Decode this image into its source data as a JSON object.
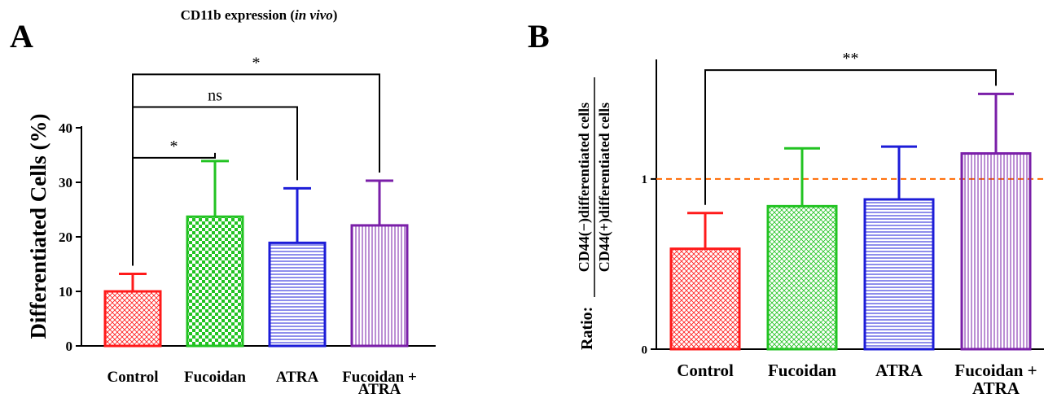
{
  "chart_data": [
    {
      "panel_label": "A",
      "type": "bar",
      "title": "CD11b expression (",
      "title_italic": "in vivo",
      "title_end": ")",
      "ylabel": "Differentiated Cells (%)",
      "xlabel": "",
      "ylim": [
        0,
        40
      ],
      "yticks": [
        0,
        10,
        20,
        30,
        40
      ],
      "categories": [
        {
          "line1": "Control",
          "line2": ""
        },
        {
          "line1": "Fucoidan",
          "line2": ""
        },
        {
          "line1": "ATRA",
          "line2": ""
        },
        {
          "line1": "Fucoidan +",
          "line2": "ATRA"
        }
      ],
      "values": [
        10.0,
        23.7,
        18.9,
        22.1
      ],
      "errors": [
        3.2,
        10.2,
        10.0,
        8.2
      ],
      "colors": [
        "#ff1a1a",
        "#22c322",
        "#1c1cd8",
        "#7a1fa8"
      ],
      "patterns": [
        "crosshatch",
        "checker",
        "horizontal",
        "vertical"
      ],
      "significance": [
        {
          "from": 0,
          "to": 1,
          "label": "*",
          "level": 34.5
        },
        {
          "from": 0,
          "to": 2,
          "label": "ns",
          "level": 43.8
        },
        {
          "from": 0,
          "to": 3,
          "label": "*",
          "level": 49.8
        }
      ]
    },
    {
      "panel_label": "B",
      "type": "bar",
      "ylabel_prefix": "Ratio:",
      "ylabel_numerator": "CD44(−)differentiated cells",
      "ylabel_denominator": "CD44(+)differentiated cells",
      "xlabel": "",
      "ylim": [
        0,
        1.65
      ],
      "yticks": [
        0,
        1
      ],
      "reference_line": 1,
      "reference_color": "#ff6a00",
      "categories": [
        {
          "line1": "Control",
          "line2": ""
        },
        {
          "line1": "Fucoidan",
          "line2": ""
        },
        {
          "line1": "ATRA",
          "line2": ""
        },
        {
          "line1": "Fucoidan +",
          "line2": "ATRA"
        }
      ],
      "values": [
        0.59,
        0.84,
        0.88,
        1.15
      ],
      "errors": [
        0.21,
        0.34,
        0.31,
        0.35
      ],
      "colors": [
        "#ff1a1a",
        "#22c322",
        "#1c1cd8",
        "#7a1fa8"
      ],
      "patterns": [
        "crosshatch",
        "crosshatch",
        "horizontal",
        "vertical"
      ],
      "significance": [
        {
          "from": 0,
          "to": 3,
          "label": "**",
          "level": 1.64
        }
      ]
    }
  ]
}
